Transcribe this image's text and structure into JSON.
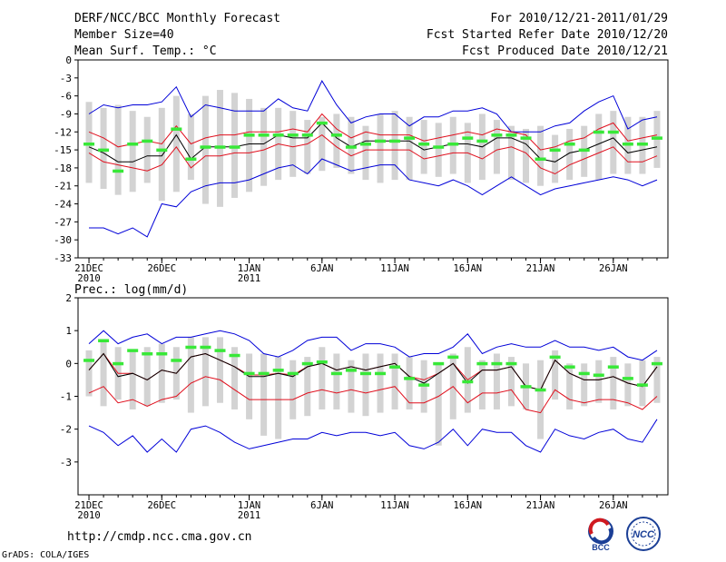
{
  "header": {
    "title": "DERF/NCC/BCC Monthly Forecast",
    "member_size": "Member Size=40",
    "variable": "Mean Surf. Temp.: °C",
    "period": "For 2010/12/21-2011/01/29",
    "started": "Fcst Started Refer Date 2010/12/20",
    "produced": "Fcst Produced Date 2010/12/21"
  },
  "footer": {
    "url": "http://cmdp.ncc.cma.gov.cn",
    "grads": "GrADS: COLA/IGES",
    "logo_bcc": "BCC",
    "logo_ncc": "NCC"
  },
  "colors": {
    "box": "#d3d3d3",
    "obs": "#38e838",
    "mean": "#000000",
    "spread": "#e0101e",
    "extreme": "#0000d8"
  },
  "chart_data": [
    {
      "type": "box",
      "title": "Mean Surf. Temp.: °C",
      "xlabel": "",
      "ylabel": "°C",
      "ylim": [
        -33,
        0
      ],
      "yticks": [
        0,
        -3,
        -6,
        -9,
        -12,
        -15,
        -18,
        -21,
        -24,
        -27,
        -30,
        -33
      ],
      "x_tick_labels": [
        {
          "day": 0,
          "label": "21DEC",
          "sub": "2010"
        },
        {
          "day": 5,
          "label": "26DEC",
          "sub": ""
        },
        {
          "day": 11,
          "label": "1JAN",
          "sub": "2011"
        },
        {
          "day": 16,
          "label": "6JAN",
          "sub": ""
        },
        {
          "day": 21,
          "label": "11JAN",
          "sub": ""
        },
        {
          "day": 26,
          "label": "16JAN",
          "sub": ""
        },
        {
          "day": 31,
          "label": "21JAN",
          "sub": ""
        },
        {
          "day": 36,
          "label": "26JAN",
          "sub": ""
        }
      ],
      "days": 40,
      "box_low": [
        -20.5,
        -21.5,
        -22.5,
        -22,
        -20.5,
        -23.5,
        -22,
        -20,
        -24,
        -24.5,
        -23,
        -22,
        -21,
        -20,
        -19.5,
        -19,
        -18.5,
        -18,
        -19,
        -20,
        -20.5,
        -20,
        -20,
        -19,
        -19.5,
        -19,
        -20.5,
        -20,
        -19,
        -20,
        -20.5,
        -21,
        -20.5,
        -20,
        -19.5,
        -20,
        -19,
        -19,
        -19,
        -18
      ],
      "box_high": [
        -7,
        -8,
        -7.5,
        -8.5,
        -9.5,
        -8,
        -6,
        -9,
        -6,
        -5,
        -5.5,
        -6.5,
        -8,
        -8,
        -8.5,
        -10,
        -9.5,
        -9,
        -9.5,
        -11,
        -9,
        -8.5,
        -9.5,
        -10,
        -10.5,
        -9.5,
        -10.5,
        -9,
        -10,
        -11,
        -11.5,
        -11,
        -12.5,
        -11.5,
        -11,
        -9,
        -8.5,
        -9.5,
        -9.5,
        -8.5
      ],
      "observed": [
        -14,
        -15,
        -18.5,
        -14,
        -13.5,
        -15,
        -11.5,
        -16.5,
        -14.5,
        -14.5,
        -14.5,
        -12.5,
        -12.5,
        -12.5,
        -12.5,
        -12.5,
        -10.5,
        -12.5,
        -14.5,
        -14,
        -13.5,
        -13.5,
        -13,
        -14,
        -14.5,
        -14,
        -13,
        -13.5,
        -12.5,
        -12.5,
        -13,
        -16.5,
        -15,
        -14,
        -15,
        -12,
        -12,
        -14,
        -14,
        -13
      ],
      "upper_blue": [
        -9,
        -7.5,
        -8,
        -7.5,
        -7.5,
        -7,
        -4.5,
        -9.5,
        -7.5,
        -8,
        -8.5,
        -8.5,
        -8.5,
        -6.5,
        -8,
        -8.5,
        -3.5,
        -7.5,
        -10.5,
        -9.5,
        -9,
        -9,
        -11,
        -9.5,
        -9.5,
        -8.5,
        -8.5,
        -8,
        -9,
        -12,
        -12,
        -12,
        -11,
        -10.5,
        -8.5,
        -7,
        -6,
        -11.5,
        -10,
        -9.5
      ],
      "upper_red": [
        -12,
        -13,
        -14.5,
        -14,
        -13.5,
        -14,
        -11,
        -14,
        -13,
        -12.5,
        -12.5,
        -12,
        -12,
        -12,
        -11.5,
        -12,
        -9,
        -11.5,
        -13,
        -12,
        -12.5,
        -12.5,
        -12.5,
        -13.5,
        -13,
        -12.5,
        -12,
        -12.5,
        -11.5,
        -12,
        -12.5,
        -15,
        -14.5,
        -13.5,
        -13,
        -11.5,
        -10.5,
        -13.5,
        -13,
        -12.5
      ],
      "mean": [
        -14.5,
        -15.5,
        -17,
        -17,
        -16,
        -16,
        -12.5,
        -16.5,
        -14.5,
        -14.5,
        -14.5,
        -14,
        -14,
        -12.5,
        -13,
        -13,
        -10.5,
        -13,
        -14.5,
        -13.5,
        -13.5,
        -13.5,
        -13.5,
        -15,
        -14.5,
        -14,
        -14,
        -14.5,
        -13,
        -13,
        -14,
        -16.5,
        -17,
        -15.5,
        -15,
        -14,
        -13,
        -15.5,
        -15,
        -14.5
      ],
      "lower_red": [
        -15.5,
        -17,
        -17.5,
        -18,
        -18.5,
        -17.5,
        -14.5,
        -18,
        -16,
        -16,
        -15.5,
        -15.5,
        -15,
        -14,
        -14.5,
        -14,
        -12.5,
        -14.5,
        -16,
        -15,
        -15,
        -15,
        -15,
        -16.5,
        -16,
        -15.5,
        -15.5,
        -16.5,
        -15,
        -14.5,
        -15.5,
        -18,
        -19,
        -17.5,
        -16.5,
        -15.5,
        -14.5,
        -17,
        -17,
        -16
      ],
      "lower_blue": [
        -28,
        -28,
        -29,
        -28,
        -29.5,
        -24,
        -24.5,
        -22,
        -21,
        -20.5,
        -20.5,
        -20,
        -19,
        -18,
        -17.5,
        -19,
        -16.5,
        -17.5,
        -18.5,
        -18,
        -17.5,
        -17.5,
        -20,
        -20.5,
        -21,
        -20,
        -21,
        -22.5,
        -21,
        -19.5,
        -21,
        -22.5,
        -21.5,
        -21,
        -20.5,
        -20,
        -19.5,
        -20,
        -21,
        -20
      ]
    },
    {
      "type": "box",
      "title": "Prec.: log(mm/d)",
      "xlabel": "",
      "ylabel": "log(mm/d)",
      "ylim": [
        -4,
        2
      ],
      "yticks": [
        2,
        1,
        0,
        -1,
        -2,
        -3
      ],
      "x_tick_labels": [
        {
          "day": 0,
          "label": "21DEC",
          "sub": "2010"
        },
        {
          "day": 5,
          "label": "26DEC",
          "sub": ""
        },
        {
          "day": 11,
          "label": "1JAN",
          "sub": "2011"
        },
        {
          "day": 16,
          "label": "6JAN",
          "sub": ""
        },
        {
          "day": 21,
          "label": "11JAN",
          "sub": ""
        },
        {
          "day": 26,
          "label": "16JAN",
          "sub": ""
        },
        {
          "day": 31,
          "label": "21JAN",
          "sub": ""
        },
        {
          "day": 36,
          "label": "26JAN",
          "sub": ""
        }
      ],
      "days": 40,
      "box_low": [
        -1,
        -1.3,
        -1.1,
        -1.4,
        -1.3,
        -1.2,
        -1.1,
        -1.5,
        -1.3,
        -1.2,
        -1.4,
        -1.7,
        -2.2,
        -2.3,
        -1.7,
        -1.6,
        -1.4,
        -1.4,
        -1.5,
        -1.6,
        -1.5,
        -1.4,
        -1.4,
        -1.5,
        -2.5,
        -1.7,
        -1.5,
        -1.4,
        -1.4,
        -1.3,
        -1.4,
        -2.3,
        -1.1,
        -1.4,
        -1.3,
        -1.2,
        -1.4,
        -1.3,
        -1.3,
        -1.2
      ],
      "box_high": [
        0.4,
        0.7,
        0.5,
        0.4,
        0.5,
        0.6,
        0.5,
        0.8,
        0.8,
        0.8,
        0.5,
        0.3,
        0.3,
        0.2,
        0.1,
        0.2,
        0.5,
        0.3,
        0.1,
        0.3,
        0.3,
        0.3,
        0.2,
        0.1,
        0,
        0.3,
        0.5,
        0.1,
        0.3,
        0.2,
        0,
        0.1,
        0.4,
        0,
        0,
        0.1,
        0.2,
        0,
        0.1,
        0.2
      ],
      "observed": [
        0.1,
        0.7,
        0,
        0.4,
        0.3,
        0.3,
        0.1,
        0.5,
        0.5,
        0.4,
        0.25,
        -0.3,
        -0.3,
        -0.2,
        -0.3,
        0,
        0.05,
        -0.3,
        -0.2,
        -0.3,
        -0.3,
        -0.1,
        -0.45,
        -0.65,
        0,
        0.2,
        -0.55,
        0,
        0,
        0,
        -0.7,
        -0.8,
        0.2,
        -0.1,
        -0.3,
        -0.35,
        -0.1,
        -0.45,
        -0.65,
        0
      ],
      "upper_blue": [
        0.6,
        1,
        0.6,
        0.8,
        0.9,
        0.6,
        0.8,
        0.8,
        0.9,
        1,
        0.9,
        0.7,
        0.3,
        0.2,
        0.4,
        0.7,
        0.8,
        0.8,
        0.4,
        0.6,
        0.6,
        0.5,
        0.2,
        0.3,
        0.3,
        0.5,
        0.9,
        0.3,
        0.5,
        0.6,
        0.5,
        0.5,
        0.7,
        0.5,
        0.5,
        0.4,
        0.5,
        0.2,
        0.1,
        0.4
      ],
      "upper_red": [
        -0.2,
        0.3,
        -0.3,
        -0.3,
        -0.5,
        -0.2,
        -0.3,
        0.2,
        0.3,
        0.1,
        -0.1,
        -0.35,
        -0.35,
        -0.3,
        -0.35,
        -0.1,
        0,
        -0.2,
        -0.1,
        -0.2,
        -0.1,
        0,
        -0.4,
        -0.5,
        -0.3,
        0,
        -0.5,
        -0.2,
        -0.2,
        -0.1,
        -0.7,
        -0.8,
        0.1,
        -0.3,
        -0.5,
        -0.5,
        -0.4,
        -0.6,
        -0.7,
        -0.1
      ],
      "mean": [
        -0.2,
        0.3,
        -0.4,
        -0.3,
        -0.5,
        -0.2,
        -0.3,
        0.2,
        0.3,
        0.1,
        -0.1,
        -0.4,
        -0.4,
        -0.3,
        -0.4,
        -0.1,
        0,
        -0.2,
        -0.1,
        -0.2,
        -0.1,
        0,
        -0.4,
        -0.6,
        -0.3,
        0,
        -0.6,
        -0.2,
        -0.2,
        -0.1,
        -0.7,
        -0.8,
        0.1,
        -0.3,
        -0.5,
        -0.5,
        -0.4,
        -0.6,
        -0.7,
        -0.1
      ],
      "lower_red": [
        -0.9,
        -0.7,
        -1.2,
        -1.1,
        -1.3,
        -1.1,
        -1,
        -0.6,
        -0.4,
        -0.5,
        -0.8,
        -1.1,
        -1.1,
        -1.1,
        -1.1,
        -0.9,
        -0.8,
        -0.9,
        -0.8,
        -0.9,
        -0.8,
        -0.7,
        -1.2,
        -1.2,
        -1,
        -0.7,
        -1.2,
        -0.9,
        -0.9,
        -0.8,
        -1.4,
        -1.5,
        -0.8,
        -1.1,
        -1.2,
        -1.1,
        -1.1,
        -1.2,
        -1.4,
        -1
      ],
      "lower_blue": [
        -1.9,
        -2.1,
        -2.5,
        -2.2,
        -2.7,
        -2.3,
        -2.7,
        -2,
        -1.9,
        -2.1,
        -2.4,
        -2.6,
        -2.5,
        -2.4,
        -2.3,
        -2.3,
        -2.1,
        -2.2,
        -2.1,
        -2.1,
        -2.2,
        -2.1,
        -2.5,
        -2.6,
        -2.4,
        -2,
        -2.5,
        -2,
        -2.1,
        -2.1,
        -2.5,
        -2.7,
        -2,
        -2.2,
        -2.3,
        -2.1,
        -2,
        -2.3,
        -2.4,
        -1.7
      ]
    }
  ]
}
